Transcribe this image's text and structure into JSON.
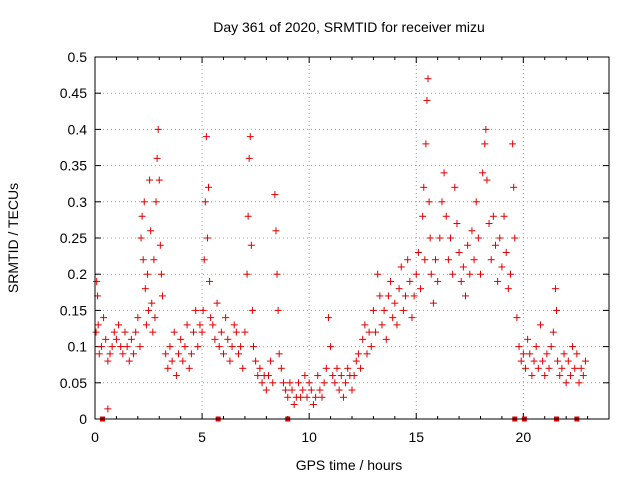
{
  "chart_data": {
    "type": "scatter",
    "title": "Day 361 of 2020, SRMTID for receiver mizu",
    "xlabel": "GPS time / hours",
    "ylabel": "SRMTID / TECUs",
    "xlim": [
      0,
      24
    ],
    "ylim": [
      0,
      0.5
    ],
    "xticks": [
      0,
      5,
      10,
      15,
      20
    ],
    "xtick_labels": [
      "0",
      "5",
      "10",
      "15",
      "20"
    ],
    "yticks": [
      0,
      0.05,
      0.1,
      0.15,
      0.2,
      0.25,
      0.3,
      0.35,
      0.4,
      0.45,
      0.5
    ],
    "ytick_labels": [
      "0",
      "0.05",
      "0.1",
      "0.15",
      "0.2",
      "0.25",
      "0.3",
      "0.35",
      "0.4",
      "0.45",
      "0.5"
    ],
    "grid": true,
    "marker": "plus",
    "marker_color": "#e00000",
    "series": [
      {
        "name": "SRMTID",
        "points": [
          [
            0.05,
            0.12
          ],
          [
            0.08,
            0.19
          ],
          [
            0.12,
            0.17
          ],
          [
            0.15,
            0.13
          ],
          [
            0.2,
            0.09
          ],
          [
            0.3,
            0.1
          ],
          [
            0.4,
            0.14
          ],
          [
            0.5,
            0.11
          ],
          [
            0.6,
            0.08
          ],
          [
            0.7,
            0.09
          ],
          [
            0.8,
            0.1
          ],
          [
            0.9,
            0.12
          ],
          [
            1.0,
            0.11
          ],
          [
            1.1,
            0.13
          ],
          [
            1.2,
            0.1
          ],
          [
            1.3,
            0.09
          ],
          [
            1.4,
            0.12
          ],
          [
            1.5,
            0.1
          ],
          [
            1.6,
            0.08
          ],
          [
            1.7,
            0.11
          ],
          [
            1.8,
            0.09
          ],
          [
            1.9,
            0.12
          ],
          [
            2.0,
            0.14
          ],
          [
            2.1,
            0.1
          ],
          [
            2.15,
            0.25
          ],
          [
            2.2,
            0.28
          ],
          [
            2.25,
            0.22
          ],
          [
            2.3,
            0.3
          ],
          [
            2.35,
            0.18
          ],
          [
            2.4,
            0.13
          ],
          [
            2.45,
            0.2
          ],
          [
            2.5,
            0.15
          ],
          [
            2.55,
            0.33
          ],
          [
            2.6,
            0.26
          ],
          [
            2.65,
            0.16
          ],
          [
            2.7,
            0.12
          ],
          [
            2.75,
            0.22
          ],
          [
            2.8,
            0.14
          ],
          [
            2.85,
            0.3
          ],
          [
            2.9,
            0.36
          ],
          [
            2.95,
            0.4
          ],
          [
            3.0,
            0.33
          ],
          [
            3.05,
            0.24
          ],
          [
            3.1,
            0.2
          ],
          [
            3.15,
            0.17
          ],
          [
            3.3,
            0.09
          ],
          [
            3.4,
            0.07
          ],
          [
            3.5,
            0.1
          ],
          [
            3.6,
            0.08
          ],
          [
            3.7,
            0.12
          ],
          [
            3.8,
            0.06
          ],
          [
            3.9,
            0.09
          ],
          [
            4.0,
            0.11
          ],
          [
            4.1,
            0.08
          ],
          [
            4.2,
            0.1
          ],
          [
            4.3,
            0.13
          ],
          [
            4.4,
            0.07
          ],
          [
            4.5,
            0.09
          ],
          [
            4.6,
            0.12
          ],
          [
            4.7,
            0.15
          ],
          [
            4.8,
            0.1
          ],
          [
            4.9,
            0.13
          ],
          [
            5.0,
            0.12
          ],
          [
            5.05,
            0.15
          ],
          [
            5.1,
            0.22
          ],
          [
            5.15,
            0.3
          ],
          [
            5.2,
            0.39
          ],
          [
            5.25,
            0.25
          ],
          [
            5.3,
            0.32
          ],
          [
            5.35,
            0.19
          ],
          [
            5.4,
            0.14
          ],
          [
            5.5,
            0.13
          ],
          [
            5.6,
            0.11
          ],
          [
            5.7,
            0.16
          ],
          [
            5.8,
            0.1
          ],
          [
            5.9,
            0.12
          ],
          [
            6.0,
            0.09
          ],
          [
            6.1,
            0.14
          ],
          [
            6.2,
            0.11
          ],
          [
            6.3,
            0.08
          ],
          [
            6.4,
            0.1
          ],
          [
            6.5,
            0.13
          ],
          [
            6.6,
            0.12
          ],
          [
            6.7,
            0.09
          ],
          [
            6.8,
            0.1
          ],
          [
            6.9,
            0.07
          ],
          [
            7.0,
            0.12
          ],
          [
            7.1,
            0.2
          ],
          [
            7.15,
            0.28
          ],
          [
            7.2,
            0.36
          ],
          [
            7.25,
            0.39
          ],
          [
            7.3,
            0.24
          ],
          [
            7.35,
            0.15
          ],
          [
            7.4,
            0.1
          ],
          [
            7.5,
            0.08
          ],
          [
            7.6,
            0.06
          ],
          [
            7.7,
            0.07
          ],
          [
            7.8,
            0.05
          ],
          [
            7.9,
            0.06
          ],
          [
            8.0,
            0.04
          ],
          [
            8.1,
            0.06
          ],
          [
            8.2,
            0.08
          ],
          [
            8.3,
            0.05
          ],
          [
            8.4,
            0.31
          ],
          [
            8.45,
            0.26
          ],
          [
            8.5,
            0.2
          ],
          [
            8.55,
            0.15
          ],
          [
            8.6,
            0.09
          ],
          [
            8.7,
            0.07
          ],
          [
            8.8,
            0.05
          ],
          [
            8.9,
            0.04
          ],
          [
            9.0,
            0.03
          ],
          [
            9.1,
            0.05
          ],
          [
            9.2,
            0.04
          ],
          [
            9.3,
            0.02
          ],
          [
            9.4,
            0.03
          ],
          [
            9.5,
            0.05
          ],
          [
            9.6,
            0.03
          ],
          [
            9.7,
            0.04
          ],
          [
            9.8,
            0.06
          ],
          [
            9.9,
            0.03
          ],
          [
            10.0,
            0.05
          ],
          [
            10.1,
            0.04
          ],
          [
            10.2,
            0.02
          ],
          [
            10.3,
            0.03
          ],
          [
            10.4,
            0.06
          ],
          [
            10.5,
            0.04
          ],
          [
            10.6,
            0.03
          ],
          [
            10.7,
            0.05
          ],
          [
            10.8,
            0.07
          ],
          [
            10.9,
            0.14
          ],
          [
            11.0,
            0.1
          ],
          [
            11.1,
            0.06
          ],
          [
            11.2,
            0.05
          ],
          [
            11.3,
            0.07
          ],
          [
            11.4,
            0.04
          ],
          [
            11.5,
            0.06
          ],
          [
            11.6,
            0.03
          ],
          [
            11.7,
            0.05
          ],
          [
            11.8,
            0.07
          ],
          [
            11.9,
            0.06
          ],
          [
            12.0,
            0.04
          ],
          [
            12.1,
            0.06
          ],
          [
            12.2,
            0.08
          ],
          [
            12.3,
            0.09
          ],
          [
            12.4,
            0.07
          ],
          [
            12.5,
            0.11
          ],
          [
            12.6,
            0.13
          ],
          [
            12.7,
            0.09
          ],
          [
            12.8,
            0.12
          ],
          [
            12.9,
            0.1
          ],
          [
            13.0,
            0.15
          ],
          [
            13.1,
            0.12
          ],
          [
            13.2,
            0.2
          ],
          [
            13.3,
            0.17
          ],
          [
            13.4,
            0.13
          ],
          [
            13.5,
            0.15
          ],
          [
            13.6,
            0.11
          ],
          [
            13.7,
            0.17
          ],
          [
            13.8,
            0.19
          ],
          [
            13.9,
            0.14
          ],
          [
            14.0,
            0.16
          ],
          [
            14.1,
            0.13
          ],
          [
            14.2,
            0.18
          ],
          [
            14.3,
            0.21
          ],
          [
            14.4,
            0.15
          ],
          [
            14.5,
            0.17
          ],
          [
            14.6,
            0.22
          ],
          [
            14.7,
            0.19
          ],
          [
            14.8,
            0.14
          ],
          [
            14.9,
            0.17
          ],
          [
            15.0,
            0.2
          ],
          [
            15.1,
            0.23
          ],
          [
            15.2,
            0.18
          ],
          [
            15.3,
            0.28
          ],
          [
            15.35,
            0.32
          ],
          [
            15.4,
            0.22
          ],
          [
            15.45,
            0.38
          ],
          [
            15.5,
            0.44
          ],
          [
            15.55,
            0.47
          ],
          [
            15.6,
            0.3
          ],
          [
            15.65,
            0.25
          ],
          [
            15.7,
            0.2
          ],
          [
            15.8,
            0.16
          ],
          [
            15.9,
            0.22
          ],
          [
            16.0,
            0.19
          ],
          [
            16.1,
            0.25
          ],
          [
            16.2,
            0.3
          ],
          [
            16.3,
            0.34
          ],
          [
            16.4,
            0.28
          ],
          [
            16.5,
            0.22
          ],
          [
            16.6,
            0.25
          ],
          [
            16.7,
            0.2
          ],
          [
            16.8,
            0.32
          ],
          [
            16.9,
            0.27
          ],
          [
            17.0,
            0.23
          ],
          [
            17.1,
            0.19
          ],
          [
            17.2,
            0.21
          ],
          [
            17.3,
            0.17
          ],
          [
            17.4,
            0.24
          ],
          [
            17.5,
            0.2
          ],
          [
            17.6,
            0.26
          ],
          [
            17.7,
            0.22
          ],
          [
            17.8,
            0.3
          ],
          [
            17.9,
            0.25
          ],
          [
            18.0,
            0.2
          ],
          [
            18.1,
            0.34
          ],
          [
            18.2,
            0.38
          ],
          [
            18.25,
            0.4
          ],
          [
            18.3,
            0.33
          ],
          [
            18.4,
            0.27
          ],
          [
            18.5,
            0.22
          ],
          [
            18.6,
            0.28
          ],
          [
            18.7,
            0.24
          ],
          [
            18.8,
            0.19
          ],
          [
            18.9,
            0.25
          ],
          [
            19.0,
            0.21
          ],
          [
            19.1,
            0.28
          ],
          [
            19.2,
            0.23
          ],
          [
            19.3,
            0.18
          ],
          [
            19.4,
            0.2
          ],
          [
            19.5,
            0.38
          ],
          [
            19.55,
            0.32
          ],
          [
            19.6,
            0.25
          ],
          [
            19.7,
            0.14
          ],
          [
            19.8,
            0.1
          ],
          [
            19.9,
            0.08
          ],
          [
            20.0,
            0.09
          ],
          [
            20.1,
            0.07
          ],
          [
            20.2,
            0.11
          ],
          [
            20.3,
            0.09
          ],
          [
            20.4,
            0.06
          ],
          [
            20.5,
            0.08
          ],
          [
            20.6,
            0.1
          ],
          [
            20.7,
            0.07
          ],
          [
            20.8,
            0.13
          ],
          [
            20.9,
            0.08
          ],
          [
            21.0,
            0.06
          ],
          [
            21.1,
            0.09
          ],
          [
            21.2,
            0.07
          ],
          [
            21.3,
            0.1
          ],
          [
            21.4,
            0.12
          ],
          [
            21.5,
            0.18
          ],
          [
            21.55,
            0.15
          ],
          [
            21.6,
            0.08
          ],
          [
            21.7,
            0.06
          ],
          [
            21.8,
            0.07
          ],
          [
            21.9,
            0.09
          ],
          [
            22.0,
            0.05
          ],
          [
            22.1,
            0.08
          ],
          [
            22.2,
            0.06
          ],
          [
            22.3,
            0.1
          ],
          [
            22.4,
            0.07
          ],
          [
            22.5,
            0.09
          ],
          [
            22.6,
            0.05
          ],
          [
            22.7,
            0.07
          ],
          [
            22.8,
            0.06
          ],
          [
            22.9,
            0.08
          ],
          [
            0.6,
            0.014
          ]
        ]
      }
    ],
    "zero_markers_x": [
      0.35,
      5.75,
      9.0,
      19.6,
      20.05,
      21.55,
      22.5
    ]
  }
}
